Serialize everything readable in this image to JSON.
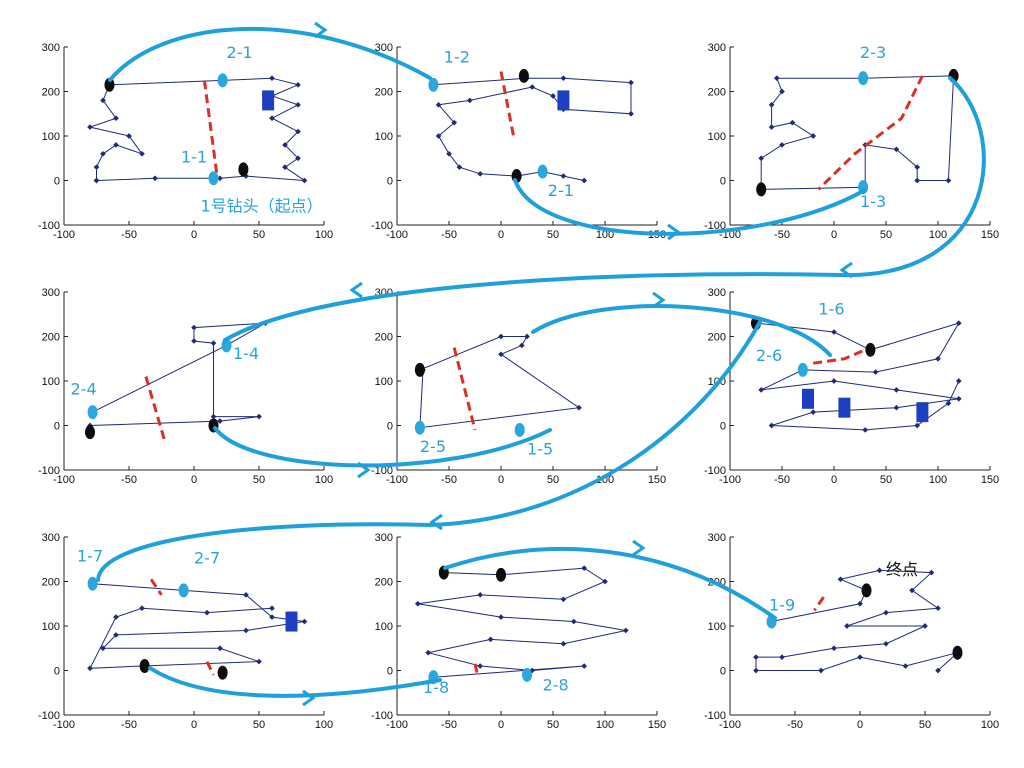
{
  "colors": {
    "route_line": "#1f2a7a",
    "node_marker": "#1f2a7a",
    "blue_block": "#1e3fbf",
    "black_dot": "#0d0d0d",
    "cyan_marker": "#2aa8dd",
    "arrow": "#1ea0dc",
    "red_dash": "#d93025",
    "label_text": "#29a3da"
  },
  "chart_data": {
    "type": "scatter",
    "axes": {
      "xlim": [
        -100,
        100
      ],
      "xlim_wide": [
        -100,
        150
      ],
      "ylim": [
        -100,
        300
      ],
      "xticks": [
        -100,
        -50,
        0,
        50,
        100
      ],
      "xticks_wide": [
        -100,
        -50,
        0,
        50,
        100,
        150
      ],
      "yticks": [
        -100,
        0,
        100,
        200,
        300
      ]
    },
    "panels": [
      {
        "xmax": 100,
        "labels": [
          {
            "text": "2-1",
            "x": 25,
            "y": 275
          },
          {
            "text": "1-1",
            "x": -10,
            "y": 40
          },
          {
            "text": "1号钻头（起点）",
            "x": 5,
            "y": -70
          }
        ],
        "markers": [
          {
            "kind": "cyan",
            "x": 22,
            "y": 225
          },
          {
            "kind": "cyan",
            "x": 15,
            "y": 5
          },
          {
            "kind": "black",
            "x": -65,
            "y": 215
          },
          {
            "kind": "black",
            "x": 38,
            "y": 25
          },
          {
            "kind": "block",
            "x": 57,
            "y": 180
          }
        ],
        "red_dashes": [
          [
            [
              8,
              225
            ],
            [
              18,
              5
            ]
          ]
        ],
        "route": [
          [
            -75,
            0
          ],
          [
            -75,
            30
          ],
          [
            -70,
            60
          ],
          [
            -60,
            80
          ],
          [
            -40,
            60
          ],
          [
            -50,
            100
          ],
          [
            -80,
            120
          ],
          [
            -60,
            140
          ],
          [
            -70,
            180
          ],
          [
            -65,
            215
          ],
          [
            22,
            225
          ],
          [
            60,
            230
          ],
          [
            80,
            215
          ],
          [
            60,
            190
          ],
          [
            80,
            170
          ],
          [
            60,
            140
          ],
          [
            80,
            110
          ],
          [
            70,
            80
          ],
          [
            80,
            50
          ],
          [
            70,
            30
          ],
          [
            85,
            0
          ],
          [
            40,
            10
          ],
          [
            20,
            5
          ],
          [
            -30,
            5
          ],
          [
            -75,
            0
          ]
        ]
      },
      {
        "xmax": 150,
        "labels": [
          {
            "text": "1-2",
            "x": -55,
            "y": 265
          },
          {
            "text": "2-1",
            "x": 45,
            "y": -35
          }
        ],
        "markers": [
          {
            "kind": "cyan",
            "x": -65,
            "y": 215
          },
          {
            "kind": "cyan",
            "x": 40,
            "y": 20
          },
          {
            "kind": "black",
            "x": 22,
            "y": 235
          },
          {
            "kind": "black",
            "x": 15,
            "y": 10
          },
          {
            "kind": "block",
            "x": 60,
            "y": 180
          }
        ],
        "red_dashes": [
          [
            [
              0,
              245
            ],
            [
              12,
              100
            ]
          ]
        ],
        "route": [
          [
            -65,
            215
          ],
          [
            25,
            230
          ],
          [
            60,
            230
          ],
          [
            125,
            220
          ],
          [
            125,
            150
          ],
          [
            60,
            160
          ],
          [
            50,
            190
          ],
          [
            30,
            210
          ],
          [
            -30,
            180
          ],
          [
            -60,
            170
          ],
          [
            -45,
            130
          ],
          [
            -60,
            100
          ],
          [
            -50,
            60
          ],
          [
            -40,
            30
          ],
          [
            -20,
            15
          ],
          [
            15,
            10
          ],
          [
            40,
            20
          ],
          [
            60,
            10
          ],
          [
            80,
            0
          ]
        ]
      },
      {
        "xmax": 150,
        "labels": [
          {
            "text": "2-3",
            "x": 25,
            "y": 275
          },
          {
            "text": "1-3",
            "x": 25,
            "y": -60
          }
        ],
        "markers": [
          {
            "kind": "cyan",
            "x": 28,
            "y": 230
          },
          {
            "kind": "cyan",
            "x": 28,
            "y": -15
          },
          {
            "kind": "black",
            "x": 115,
            "y": 235
          },
          {
            "kind": "black",
            "x": -70,
            "y": -20
          }
        ],
        "red_dashes": [
          [
            [
              85,
              235
            ],
            [
              65,
              140
            ],
            [
              20,
              60
            ],
            [
              -15,
              -20
            ]
          ]
        ],
        "route": [
          [
            115,
            235
          ],
          [
            28,
            230
          ],
          [
            -55,
            230
          ],
          [
            -50,
            200
          ],
          [
            -60,
            170
          ],
          [
            -60,
            120
          ],
          [
            -40,
            130
          ],
          [
            -20,
            100
          ],
          [
            -50,
            80
          ],
          [
            -70,
            50
          ],
          [
            -70,
            -20
          ],
          [
            30,
            -15
          ],
          [
            30,
            80
          ],
          [
            60,
            70
          ],
          [
            80,
            30
          ],
          [
            80,
            0
          ],
          [
            110,
            0
          ],
          [
            115,
            235
          ]
        ]
      },
      {
        "xmax": 100,
        "labels": [
          {
            "text": "1-4",
            "x": 30,
            "y": 150
          },
          {
            "text": "2-4",
            "x": -95,
            "y": 70
          }
        ],
        "markers": [
          {
            "kind": "cyan",
            "x": 25,
            "y": 180
          },
          {
            "kind": "cyan",
            "x": -78,
            "y": 30
          },
          {
            "kind": "black",
            "x": 15,
            "y": 0
          },
          {
            "kind": "black",
            "x": -80,
            "y": -15
          }
        ],
        "red_dashes": [
          [
            [
              -37,
              110
            ],
            [
              -23,
              -30
            ]
          ]
        ],
        "route": [
          [
            -78,
            30
          ],
          [
            25,
            180
          ],
          [
            55,
            230
          ],
          [
            0,
            220
          ],
          [
            0,
            190
          ],
          [
            15,
            185
          ],
          [
            15,
            20
          ],
          [
            50,
            20
          ],
          [
            20,
            10
          ],
          [
            -80,
            0
          ],
          [
            -80,
            -15
          ]
        ]
      },
      {
        "xmax": 150,
        "labels": [
          {
            "text": "2-5",
            "x": -78,
            "y": -60
          },
          {
            "text": "1-5",
            "x": 25,
            "y": -65
          }
        ],
        "markers": [
          {
            "kind": "cyan",
            "x": -78,
            "y": -5
          },
          {
            "kind": "cyan",
            "x": 18,
            "y": -10
          },
          {
            "kind": "black",
            "x": -78,
            "y": 125
          }
        ],
        "red_dashes": [
          [
            [
              -45,
              175
            ],
            [
              -25,
              -10
            ]
          ]
        ],
        "route": [
          [
            -78,
            125
          ],
          [
            0,
            200
          ],
          [
            25,
            200
          ],
          [
            20,
            180
          ],
          [
            0,
            160
          ],
          [
            75,
            40
          ],
          [
            -78,
            -5
          ],
          [
            -75,
            125
          ]
        ]
      },
      {
        "xmax": 150,
        "labels": [
          {
            "text": "1-6",
            "x": -15,
            "y": 250
          },
          {
            "text": "2-6",
            "x": -75,
            "y": 145
          }
        ],
        "markers": [
          {
            "kind": "cyan",
            "x": -30,
            "y": 125
          },
          {
            "kind": "black",
            "x": -75,
            "y": 230
          },
          {
            "kind": "black",
            "x": 35,
            "y": 170
          },
          {
            "kind": "block",
            "x": -25,
            "y": 60
          },
          {
            "kind": "block",
            "x": 10,
            "y": 40
          },
          {
            "kind": "block",
            "x": 85,
            "y": 30
          }
        ],
        "red_dashes": [
          [
            [
              -20,
              140
            ],
            [
              10,
              150
            ],
            [
              35,
              175
            ]
          ]
        ],
        "route": [
          [
            -75,
            230
          ],
          [
            0,
            210
          ],
          [
            35,
            170
          ],
          [
            120,
            230
          ],
          [
            100,
            150
          ],
          [
            40,
            120
          ],
          [
            -30,
            125
          ],
          [
            -70,
            80
          ],
          [
            0,
            100
          ],
          [
            60,
            80
          ],
          [
            120,
            60
          ],
          [
            60,
            40
          ],
          [
            -20,
            30
          ],
          [
            -60,
            0
          ],
          [
            30,
            -10
          ],
          [
            80,
            0
          ],
          [
            110,
            50
          ],
          [
            120,
            100
          ]
        ]
      },
      {
        "xmax": 100,
        "labels": [
          {
            "text": "1-7",
            "x": -90,
            "y": 245
          },
          {
            "text": "2-7",
            "x": 0,
            "y": 240
          }
        ],
        "markers": [
          {
            "kind": "cyan",
            "x": -78,
            "y": 195
          },
          {
            "kind": "cyan",
            "x": -8,
            "y": 180
          },
          {
            "kind": "black",
            "x": 22,
            "y": -5
          },
          {
            "kind": "black",
            "x": -38,
            "y": 10
          },
          {
            "kind": "block",
            "x": 75,
            "y": 110
          }
        ],
        "red_dashes": [
          [
            [
              -33,
              205
            ],
            [
              -25,
              170
            ]
          ],
          [
            [
              10,
              20
            ],
            [
              15,
              -10
            ]
          ]
        ],
        "route": [
          [
            -78,
            195
          ],
          [
            -8,
            180
          ],
          [
            40,
            170
          ],
          [
            60,
            120
          ],
          [
            85,
            110
          ],
          [
            40,
            90
          ],
          [
            -60,
            80
          ],
          [
            -70,
            50
          ],
          [
            20,
            50
          ],
          [
            50,
            20
          ],
          [
            -40,
            10
          ],
          [
            -80,
            5
          ],
          [
            -60,
            120
          ],
          [
            -40,
            140
          ],
          [
            10,
            130
          ],
          [
            60,
            140
          ]
        ]
      },
      {
        "xmax": 150,
        "labels": [
          {
            "text": "1-8",
            "x": -75,
            "y": -50
          },
          {
            "text": "2-8",
            "x": 40,
            "y": -45
          }
        ],
        "markers": [
          {
            "kind": "cyan",
            "x": -65,
            "y": -15
          },
          {
            "kind": "cyan",
            "x": 25,
            "y": -10
          },
          {
            "kind": "black",
            "x": -55,
            "y": 220
          },
          {
            "kind": "black",
            "x": 0,
            "y": 215
          }
        ],
        "red_dashes": [
          [
            [
              -25,
              15
            ],
            [
              -22,
              -15
            ]
          ]
        ],
        "route": [
          [
            -55,
            220
          ],
          [
            0,
            215
          ],
          [
            80,
            230
          ],
          [
            100,
            200
          ],
          [
            60,
            160
          ],
          [
            -20,
            170
          ],
          [
            -80,
            150
          ],
          [
            0,
            120
          ],
          [
            70,
            110
          ],
          [
            120,
            90
          ],
          [
            60,
            60
          ],
          [
            -10,
            70
          ],
          [
            -70,
            40
          ],
          [
            -20,
            10
          ],
          [
            30,
            0
          ],
          [
            80,
            10
          ],
          [
            -65,
            -15
          ]
        ]
      },
      {
        "xmax": 100,
        "labels": [
          {
            "text": "1-9",
            "x": -70,
            "y": 135
          },
          {
            "text": "终点",
            "x": 20,
            "y": 215
          }
        ],
        "markers": [
          {
            "kind": "cyan",
            "x": -68,
            "y": 110
          },
          {
            "kind": "black",
            "x": 5,
            "y": 180
          },
          {
            "kind": "black",
            "x": 75,
            "y": 40
          }
        ],
        "red_dashes": [
          [
            [
              -28,
              165
            ],
            [
              -35,
              135
            ]
          ]
        ],
        "route": [
          [
            -68,
            110
          ],
          [
            0,
            150
          ],
          [
            5,
            180
          ],
          [
            -15,
            205
          ],
          [
            15,
            225
          ],
          [
            55,
            220
          ],
          [
            40,
            180
          ],
          [
            60,
            140
          ],
          [
            20,
            130
          ],
          [
            -10,
            100
          ],
          [
            50,
            100
          ],
          [
            20,
            60
          ],
          [
            -20,
            50
          ],
          [
            -60,
            30
          ],
          [
            -80,
            30
          ],
          [
            -80,
            0
          ],
          [
            -30,
            0
          ],
          [
            0,
            30
          ],
          [
            35,
            10
          ],
          [
            75,
            40
          ],
          [
            60,
            0
          ]
        ]
      }
    ]
  }
}
